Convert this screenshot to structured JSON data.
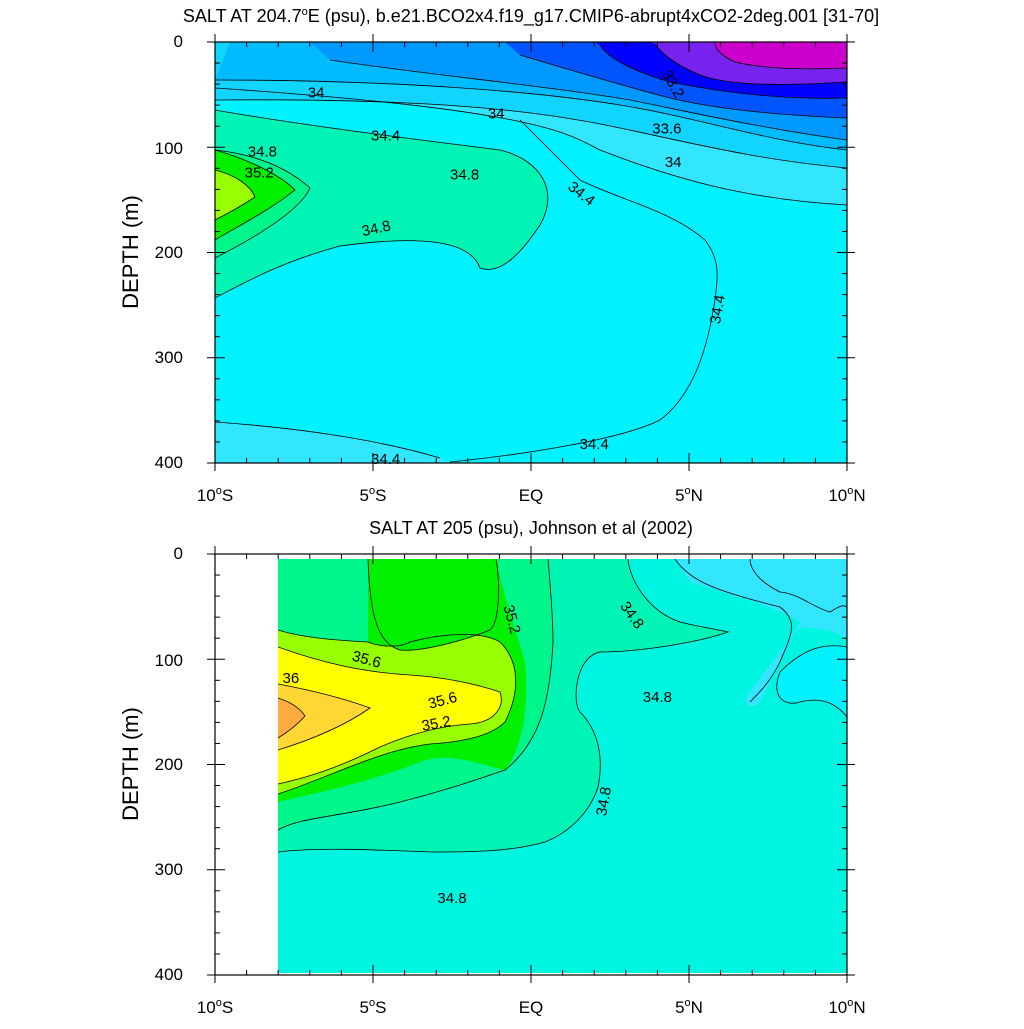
{
  "chart_data": [
    {
      "type": "contour",
      "title": "SALT AT 204.7°E (psu), b.e21.BCO2x4.f19_g17.CMIP6-abrupt4xCO2-2deg.001 [31-70]",
      "title_parts": [
        "SALT AT 204.7",
        "o",
        "E (psu), b.e21.BCO2x4.f19_g17.CMIP6-abrupt4xCO2-2deg.001 [31-70]"
      ],
      "xlabel": "",
      "ylabel": "DEPTH (m)",
      "xlim": [
        -10,
        10
      ],
      "ylim": [
        400,
        0
      ],
      "x_ticks": [
        {
          "value": -10,
          "label": "10",
          "deg": "o",
          "hemi": "S"
        },
        {
          "value": -5,
          "label": "5",
          "deg": "o",
          "hemi": "S"
        },
        {
          "value": 0,
          "label": "EQ",
          "deg": "",
          "hemi": ""
        },
        {
          "value": 5,
          "label": "5",
          "deg": "o",
          "hemi": "N"
        },
        {
          "value": 10,
          "label": "10",
          "deg": "o",
          "hemi": "N"
        }
      ],
      "y_ticks": [
        "0",
        "100",
        "200",
        "300",
        "400"
      ],
      "contour_labels": [
        {
          "text": "34",
          "lat": -6.8,
          "depth": 48,
          "angle": 0
        },
        {
          "text": "34",
          "lat": -1.1,
          "depth": 68,
          "angle": 0
        },
        {
          "text": "34.4",
          "lat": -4.6,
          "depth": 89,
          "angle": 0
        },
        {
          "text": "34.8",
          "lat": -8.5,
          "depth": 104,
          "angle": 0
        },
        {
          "text": "35.2",
          "lat": -8.6,
          "depth": 124,
          "angle": 0
        },
        {
          "text": "34.8",
          "lat": -2.1,
          "depth": 126,
          "angle": 0
        },
        {
          "text": "34.8",
          "lat": -4.9,
          "depth": 177,
          "angle": -12
        },
        {
          "text": "34.4",
          "lat": 1.6,
          "depth": 144,
          "angle": 38
        },
        {
          "text": "34",
          "lat": 4.5,
          "depth": 114,
          "angle": 0
        },
        {
          "text": "33.6",
          "lat": 4.3,
          "depth": 82,
          "angle": 0
        },
        {
          "text": "33.2",
          "lat": 4.5,
          "depth": 40,
          "angle": 60
        },
        {
          "text": "34.4",
          "lat": 5.9,
          "depth": 254,
          "angle": -80
        },
        {
          "text": "34.4",
          "lat": 2.0,
          "depth": 382,
          "angle": 0
        },
        {
          "text": "34.4",
          "lat": -4.6,
          "depth": 396,
          "angle": 0
        }
      ],
      "colors": {
        "magenta": "#cc00cc",
        "purple": "#7722ee",
        "blue": "#0000ff",
        "royal": "#0055ff",
        "azure": "#0099ff",
        "sky": "#00bbff",
        "light_sky": "#11d5ff",
        "light_cyan": "#33e6ff",
        "cyan": "#00f2ff",
        "aqua": "#00f5e0",
        "seafoam": "#00f5b4",
        "teal_green": "#00f58a",
        "green": "#00f000",
        "lime": "#98ff00"
      }
    },
    {
      "type": "contour",
      "title": "SALT AT 205 (psu), Johnson et al (2002)",
      "xlabel": "",
      "ylabel": "DEPTH (m)",
      "xlim": [
        -10,
        10
      ],
      "ylim": [
        400,
        0
      ],
      "x_ticks": [
        {
          "value": -10,
          "label": "10",
          "deg": "o",
          "hemi": "S"
        },
        {
          "value": -5,
          "label": "5",
          "deg": "o",
          "hemi": "S"
        },
        {
          "value": 0,
          "label": "EQ",
          "deg": "",
          "hemi": ""
        },
        {
          "value": 5,
          "label": "5",
          "deg": "o",
          "hemi": "N"
        },
        {
          "value": 10,
          "label": "10",
          "deg": "o",
          "hemi": "N"
        }
      ],
      "y_ticks": [
        "0",
        "100",
        "200",
        "300",
        "400"
      ],
      "contour_labels": [
        {
          "text": "35.2",
          "lat": -0.6,
          "depth": 62,
          "angle": 75
        },
        {
          "text": "34.8",
          "lat": 3.2,
          "depth": 58,
          "angle": 55
        },
        {
          "text": "35.6",
          "lat": -5.2,
          "depth": 100,
          "angle": 15
        },
        {
          "text": "36",
          "lat": -7.6,
          "depth": 118,
          "angle": 0
        },
        {
          "text": "35.6",
          "lat": -2.8,
          "depth": 139,
          "angle": -15
        },
        {
          "text": "35.2",
          "lat": -3.0,
          "depth": 161,
          "angle": -10
        },
        {
          "text": "34.8",
          "lat": 4.0,
          "depth": 136,
          "angle": 0
        },
        {
          "text": "34.8",
          "lat": 2.3,
          "depth": 235,
          "angle": -80
        },
        {
          "text": "34.8",
          "lat": -2.5,
          "depth": 327,
          "angle": 0
        }
      ],
      "colors": {
        "cyan": "#00f2ff",
        "light_cyan": "#33e6ff",
        "aqua": "#00f5e0",
        "seafoam": "#00f5b4",
        "teal_green": "#00f58a",
        "green": "#00f000",
        "lime": "#98ff00",
        "yellow": "#ffff00",
        "gold": "#ffd633",
        "orange": "#ffab40"
      }
    }
  ]
}
